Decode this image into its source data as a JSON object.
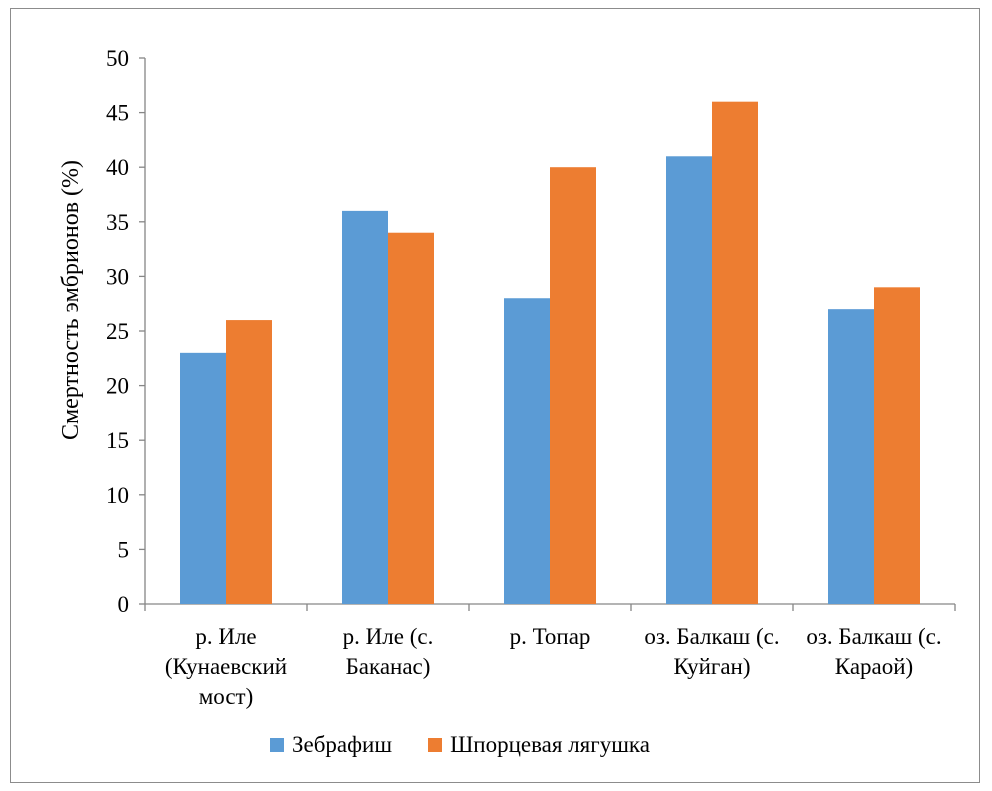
{
  "chart_data": {
    "type": "bar",
    "title": "",
    "ylabel": "Смертность эмбрионов (%)",
    "xlabel": "",
    "ylim": [
      0,
      50
    ],
    "yticks": [
      0,
      5,
      10,
      15,
      20,
      25,
      30,
      35,
      40,
      45,
      50
    ],
    "grid": false,
    "legend_position": "bottom",
    "categories": [
      [
        "р. Иле",
        "(Кунаевский",
        "мост)"
      ],
      [
        "р. Иле (с.",
        "Баканас)"
      ],
      [
        "р. Топар"
      ],
      [
        "оз. Балкаш (с.",
        "Куйган)"
      ],
      [
        "оз. Балкаш (с.",
        "Караой)"
      ]
    ],
    "series": [
      {
        "name": "Зебрафиш",
        "color": "#5b9bd5",
        "values": [
          23,
          36,
          28,
          41,
          27
        ]
      },
      {
        "name": "Шпорцевая лягушка",
        "color": "#ed7d31",
        "values": [
          26,
          34,
          40,
          46,
          29
        ]
      }
    ]
  }
}
